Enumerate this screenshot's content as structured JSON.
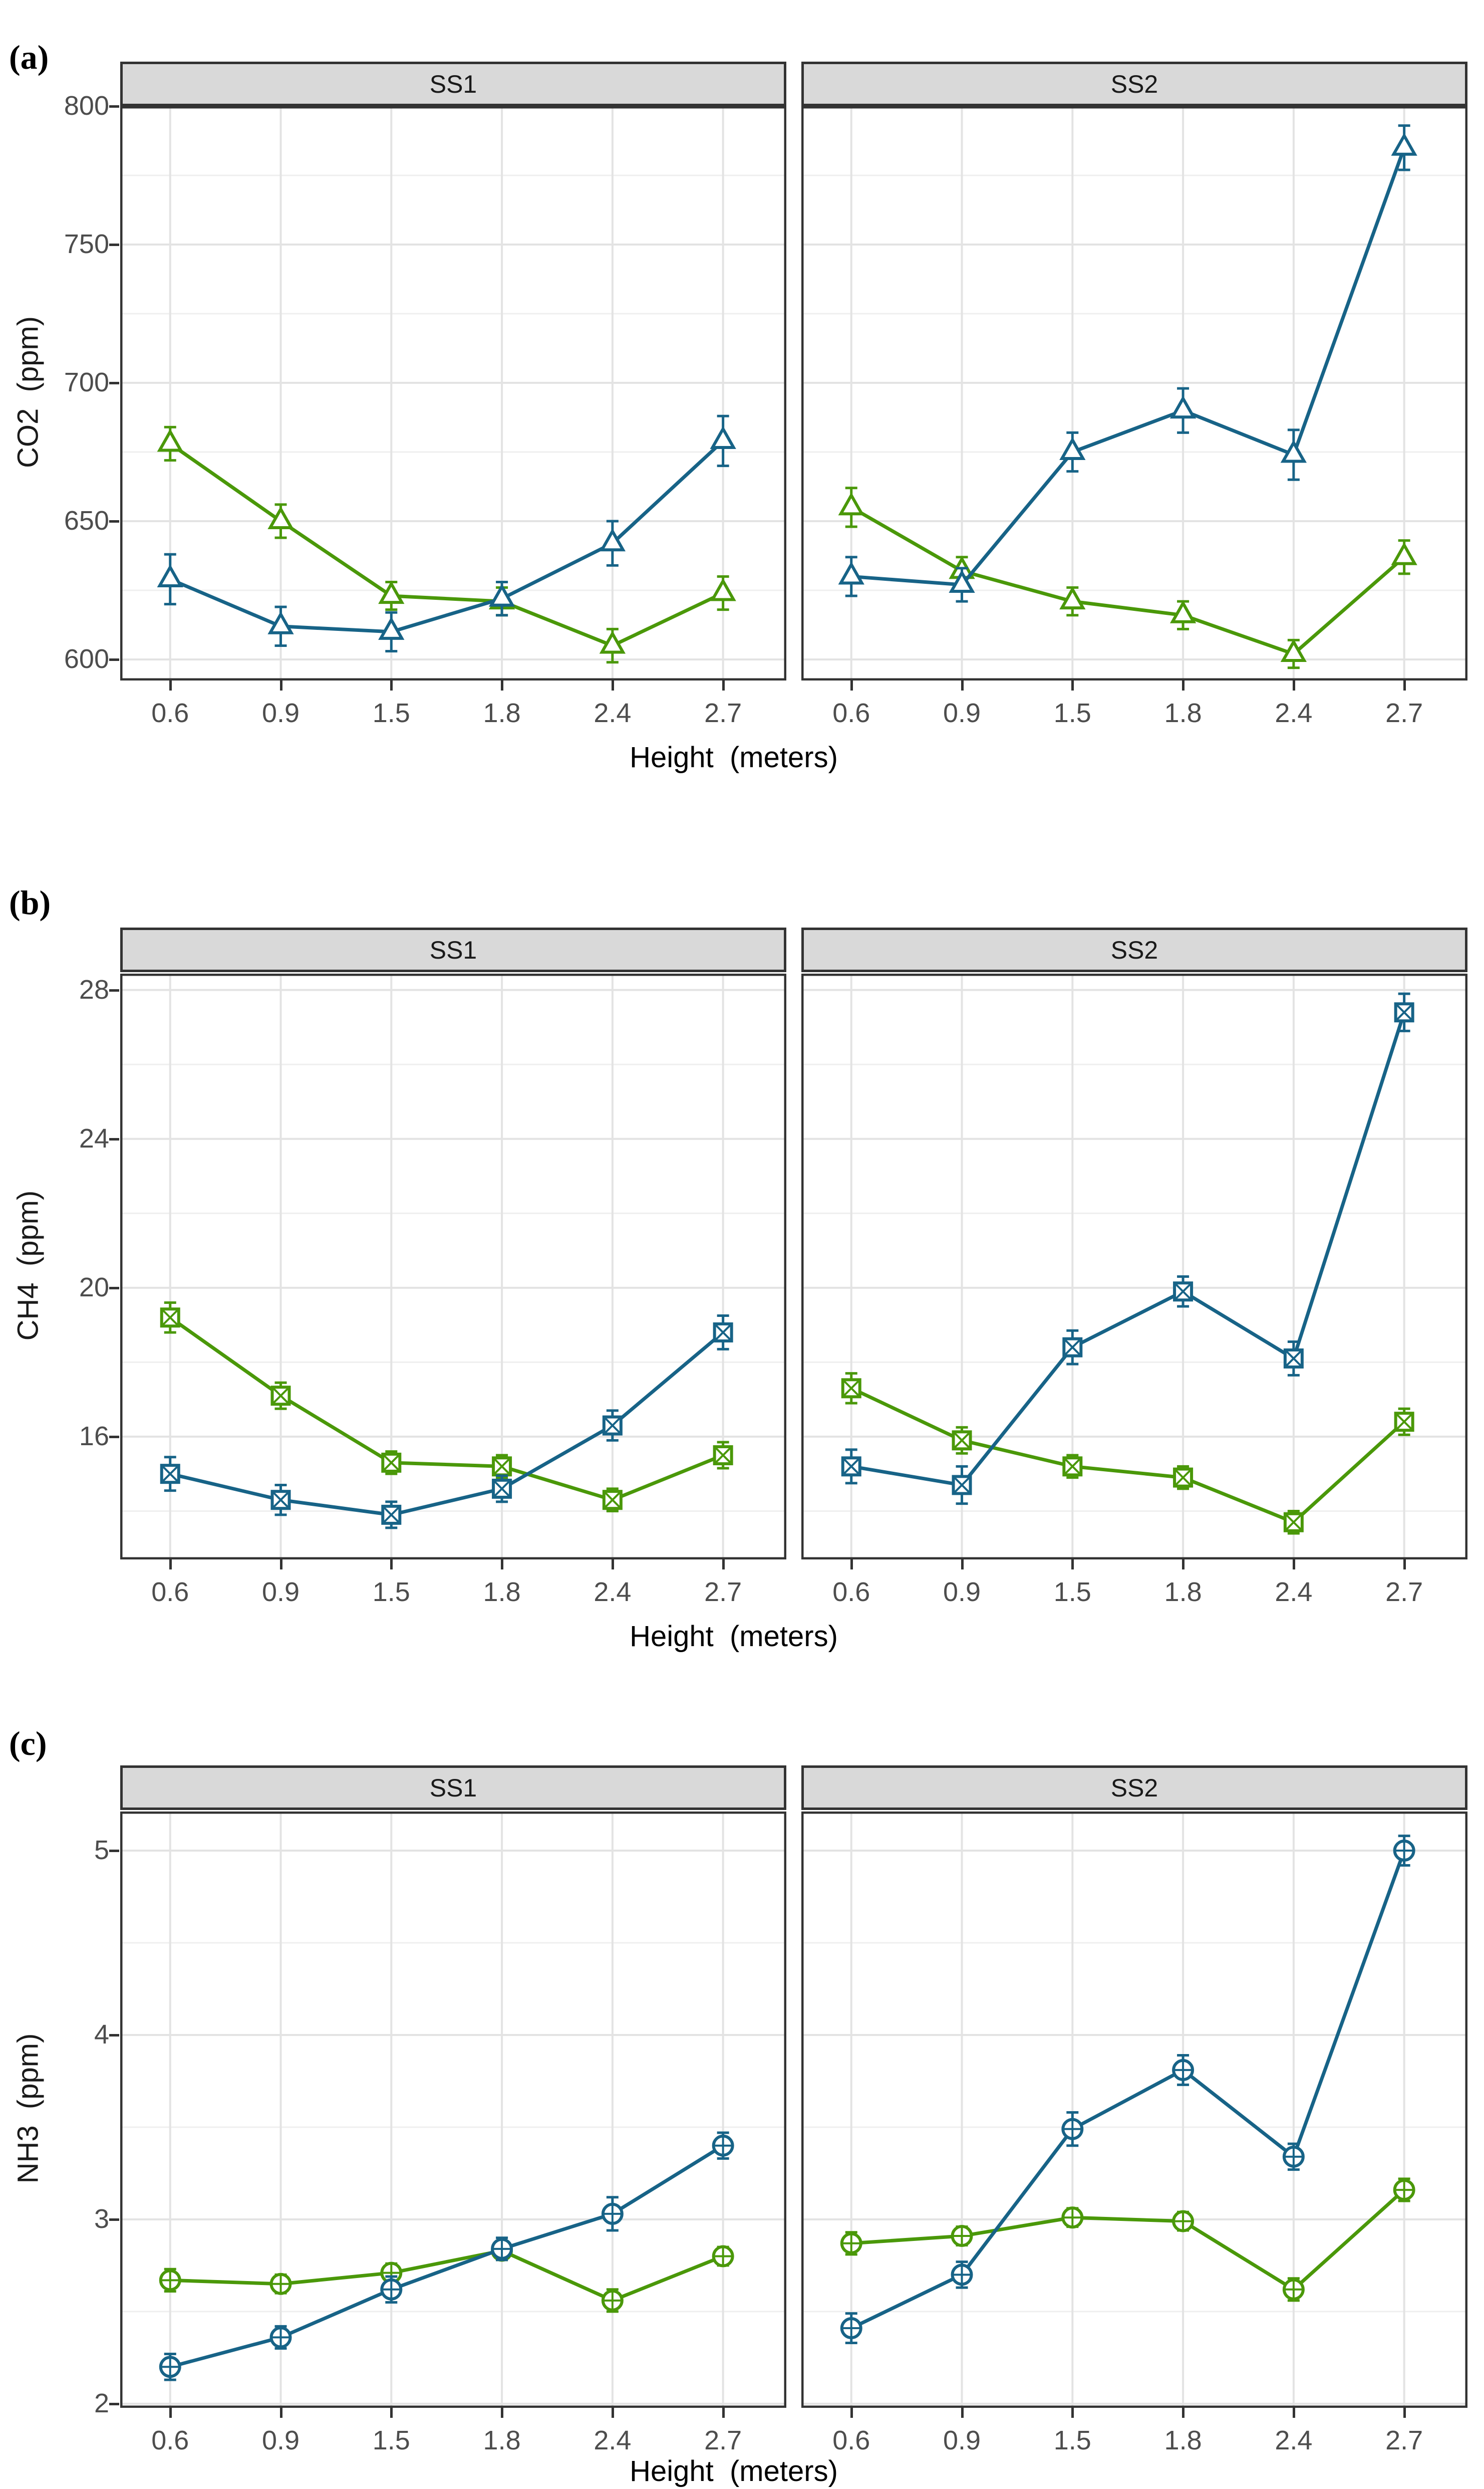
{
  "figure": {
    "x_title": "Height  (meters)",
    "x_categories": [
      "0.6",
      "0.9",
      "1.5",
      "1.8",
      "2.4",
      "2.7"
    ],
    "strip_labels": [
      "SS1",
      "SS2"
    ],
    "colors": {
      "series_green": "#4a9809",
      "series_blue": "#176387",
      "strip_bg": "#d9d9d9",
      "panel_border": "#333333",
      "grid_major": "#e3e3e3",
      "grid_minor": "#efefef",
      "tick_text": "#4d4d4d"
    }
  },
  "chart_data": [
    {
      "type": "line",
      "panel_label": "(a)",
      "ylabel": "CO2  (ppm)",
      "xlabel": "Height  (meters)",
      "x_categories": [
        "0.6",
        "0.9",
        "1.5",
        "1.8",
        "2.4",
        "2.7"
      ],
      "y_ticks": [
        600,
        650,
        700,
        750,
        800
      ],
      "y_minor": [
        625,
        675,
        725,
        775
      ],
      "ylim": [
        592.4,
        800
      ],
      "facets": [
        {
          "label": "SS1",
          "series": [
            {
              "name": "green-triangle",
              "color": "#4a9809",
              "marker": "triangle",
              "values": [
                678,
                650,
                623,
                621,
                605,
                624
              ],
              "errors": [
                6,
                6,
                5,
                5,
                6,
                6
              ]
            },
            {
              "name": "blue-triangle",
              "color": "#176387",
              "marker": "triangle",
              "values": [
                629,
                612,
                610,
                622,
                642,
                679
              ],
              "errors": [
                9,
                7,
                7,
                6,
                8,
                9
              ]
            }
          ]
        },
        {
          "label": "SS2",
          "series": [
            {
              "name": "green-triangle",
              "color": "#4a9809",
              "marker": "triangle",
              "values": [
                655,
                632,
                621,
                616,
                602,
                637
              ],
              "errors": [
                7,
                5,
                5,
                5,
                5,
                6
              ]
            },
            {
              "name": "blue-triangle",
              "color": "#176387",
              "marker": "triangle",
              "values": [
                630,
                627,
                675,
                690,
                674,
                785
              ],
              "errors": [
                7,
                6,
                7,
                8,
                9,
                8
              ]
            }
          ]
        }
      ]
    },
    {
      "type": "line",
      "panel_label": "(b)",
      "ylabel": "CH4  (ppm)",
      "xlabel": "Height  (meters)",
      "x_categories": [
        "0.6",
        "0.9",
        "1.5",
        "1.8",
        "2.4",
        "2.7"
      ],
      "y_ticks": [
        16,
        20,
        24,
        28
      ],
      "y_minor": [
        14,
        18,
        22,
        26
      ],
      "ylim": [
        12.7,
        28.44
      ],
      "facets": [
        {
          "label": "SS1",
          "series": [
            {
              "name": "green-squareX",
              "color": "#4a9809",
              "marker": "squareX",
              "values": [
                19.2,
                17.1,
                15.3,
                15.2,
                14.3,
                15.5
              ],
              "errors": [
                0.4,
                0.35,
                0.3,
                0.3,
                0.3,
                0.35
              ]
            },
            {
              "name": "blue-squareX",
              "color": "#176387",
              "marker": "squareX",
              "values": [
                15.0,
                14.3,
                13.9,
                14.6,
                16.3,
                18.8
              ],
              "errors": [
                0.45,
                0.4,
                0.35,
                0.35,
                0.4,
                0.45
              ]
            }
          ]
        },
        {
          "label": "SS2",
          "series": [
            {
              "name": "green-squareX",
              "color": "#4a9809",
              "marker": "squareX",
              "values": [
                17.3,
                15.9,
                15.2,
                14.9,
                13.7,
                16.4
              ],
              "errors": [
                0.4,
                0.35,
                0.3,
                0.3,
                0.3,
                0.35
              ]
            },
            {
              "name": "blue-squareX",
              "color": "#176387",
              "marker": "squareX",
              "values": [
                15.2,
                14.7,
                18.4,
                19.9,
                18.1,
                27.4
              ],
              "errors": [
                0.45,
                0.5,
                0.45,
                0.4,
                0.45,
                0.5
              ]
            }
          ]
        }
      ]
    },
    {
      "type": "line",
      "panel_label": "(c)",
      "ylabel": "NH3  (ppm)",
      "xlabel": "Height  (meters)",
      "x_categories": [
        "0.6",
        "0.9",
        "1.5",
        "1.8",
        "2.4",
        "2.7"
      ],
      "y_ticks": [
        2,
        3,
        4,
        5
      ],
      "y_minor": [
        2.5,
        3.5,
        4.5
      ],
      "ylim": [
        1.978,
        5.212
      ],
      "facets": [
        {
          "label": "SS1",
          "series": [
            {
              "name": "green-circlePlus",
              "color": "#4a9809",
              "marker": "circlePlus",
              "values": [
                2.67,
                2.65,
                2.71,
                2.83,
                2.56,
                2.8
              ],
              "errors": [
                0.06,
                0.05,
                0.05,
                0.05,
                0.06,
                0.05
              ]
            },
            {
              "name": "blue-circlePlus",
              "color": "#176387",
              "marker": "circlePlus",
              "values": [
                2.2,
                2.36,
                2.62,
                2.84,
                3.03,
                3.4
              ],
              "errors": [
                0.07,
                0.06,
                0.07,
                0.06,
                0.09,
                0.07
              ]
            }
          ]
        },
        {
          "label": "SS2",
          "series": [
            {
              "name": "green-circlePlus",
              "color": "#4a9809",
              "marker": "circlePlus",
              "values": [
                2.87,
                2.91,
                3.01,
                2.99,
                2.62,
                3.16
              ],
              "errors": [
                0.06,
                0.05,
                0.05,
                0.05,
                0.06,
                0.06
              ]
            },
            {
              "name": "blue-circlePlus",
              "color": "#176387",
              "marker": "circlePlus",
              "values": [
                2.41,
                2.7,
                3.49,
                3.81,
                3.34,
                5.0
              ],
              "errors": [
                0.08,
                0.07,
                0.09,
                0.08,
                0.07,
                0.08
              ]
            }
          ]
        }
      ]
    }
  ]
}
